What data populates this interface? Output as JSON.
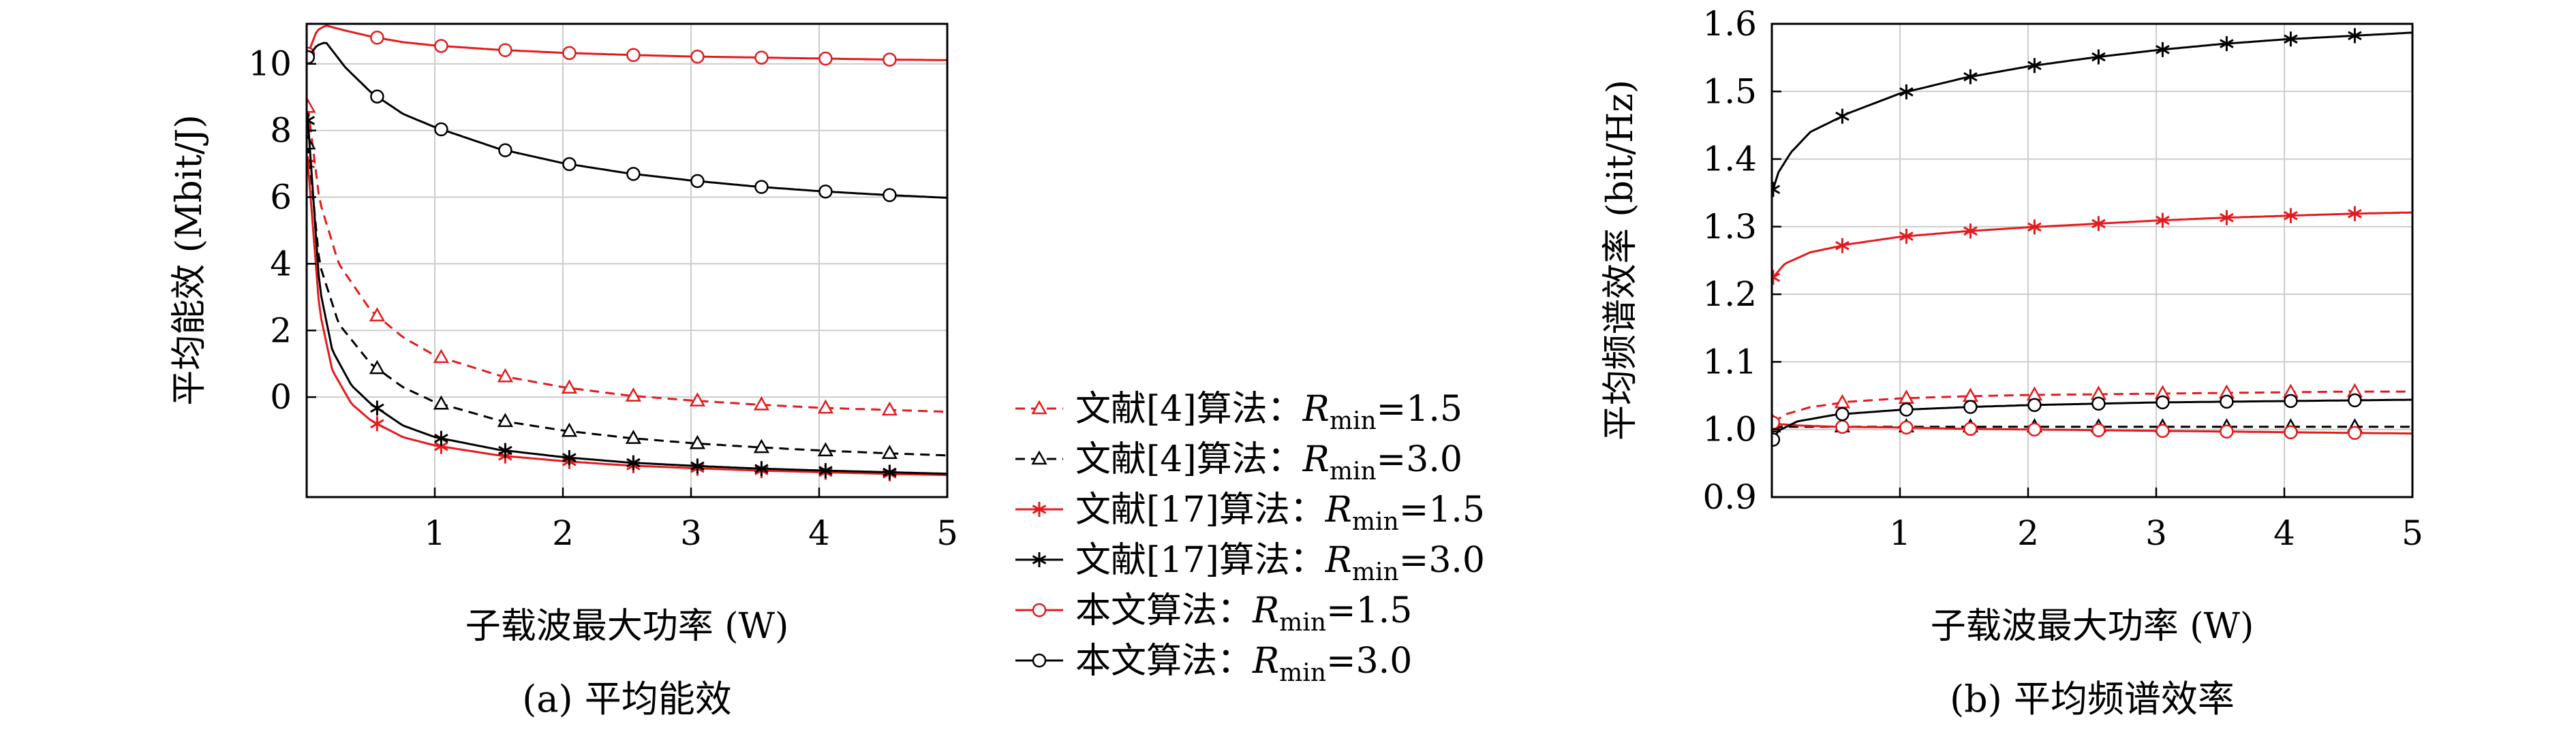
{
  "series_styles": [
    {
      "key": "ref4_15",
      "color": "#e41a1c",
      "dash": "dash",
      "marker": "triangle"
    },
    {
      "key": "ref4_30",
      "color": "#000000",
      "dash": "dash",
      "marker": "triangle"
    },
    {
      "key": "ref17_15",
      "color": "#e41a1c",
      "dash": "solid",
      "marker": "star"
    },
    {
      "key": "ref17_30",
      "color": "#000000",
      "dash": "solid",
      "marker": "star"
    },
    {
      "key": "ours_15",
      "color": "#e41a1c",
      "dash": "solid",
      "marker": "circle"
    },
    {
      "key": "ours_30",
      "color": "#000000",
      "dash": "solid",
      "marker": "circle"
    }
  ],
  "legend": {
    "entries": [
      {
        "prefix": "文献[4]算法：",
        "var": "R",
        "sub": "min",
        "suffix": "=1.5"
      },
      {
        "prefix": "文献[4]算法：",
        "var": "R",
        "sub": "min",
        "suffix": "=3.0"
      },
      {
        "prefix": "文献[17]算法：",
        "var": "R",
        "sub": "min",
        "suffix": "=1.5"
      },
      {
        "prefix": "文献[17]算法：",
        "var": "R",
        "sub": "min",
        "suffix": "=3.0"
      },
      {
        "prefix": "本文算法：",
        "var": "R",
        "sub": "min",
        "suffix": "=1.5"
      },
      {
        "prefix": "本文算法：",
        "var": "R",
        "sub": "min",
        "suffix": "=3.0"
      }
    ]
  },
  "chart_data": [
    {
      "type": "line",
      "caption": "(a) 平均能效",
      "xlabel": "子载波最大功率 (W)",
      "ylabel": "平均能效 (Mbit/J)",
      "xlim": [
        0,
        5
      ],
      "ylim": [
        -3,
        11.2
      ],
      "xticks": [
        "1",
        "2",
        "3",
        "4",
        "5"
      ],
      "yticks": [
        "0",
        "2",
        "4",
        "6",
        "8",
        "10"
      ],
      "xtick_values": [
        1,
        2,
        3,
        4,
        5
      ],
      "ytick_values": [
        0,
        2,
        4,
        6,
        8,
        10
      ],
      "grid": true,
      "series": [
        {
          "x": [
            0.01,
            0.1,
            0.25,
            0.5,
            0.75,
            1.0,
            1.5,
            2.0,
            2.5,
            3.0,
            3.5,
            4.0,
            4.5,
            5.0
          ],
          "y": [
            8.7,
            5.9,
            4.0,
            2.6,
            1.8,
            1.25,
            0.65,
            0.3,
            0.05,
            -0.1,
            -0.22,
            -0.32,
            -0.38,
            -0.44
          ],
          "markers_x": [
            0.01,
            0.55,
            1.05,
            1.55,
            2.05,
            2.55,
            3.05,
            3.55,
            4.05,
            4.55
          ]
        },
        {
          "x": [
            0.01,
            0.1,
            0.25,
            0.5,
            0.75,
            1.0,
            1.5,
            2.0,
            2.5,
            3.0,
            3.5,
            4.0,
            4.5,
            5.0
          ],
          "y": [
            7.6,
            4.0,
            2.2,
            1.0,
            0.3,
            -0.15,
            -0.7,
            -1.0,
            -1.22,
            -1.38,
            -1.5,
            -1.6,
            -1.68,
            -1.75
          ],
          "markers_x": [
            0.01,
            0.55,
            1.05,
            1.55,
            2.05,
            2.55,
            3.05,
            3.55,
            4.05,
            4.55
          ]
        },
        {
          "x": [
            0.01,
            0.1,
            0.2,
            0.35,
            0.5,
            0.75,
            1.0,
            1.5,
            2.0,
            2.5,
            3.0,
            3.5,
            4.0,
            4.5,
            5.0
          ],
          "y": [
            7.0,
            2.6,
            0.8,
            -0.2,
            -0.7,
            -1.2,
            -1.45,
            -1.75,
            -1.92,
            -2.05,
            -2.13,
            -2.2,
            -2.25,
            -2.3,
            -2.34
          ],
          "markers_x": [
            0.01,
            0.55,
            1.05,
            1.55,
            2.05,
            2.55,
            3.05,
            3.55,
            4.05,
            4.55
          ]
        },
        {
          "x": [
            0.01,
            0.1,
            0.2,
            0.35,
            0.5,
            0.75,
            1.0,
            1.5,
            2.0,
            2.5,
            3.0,
            3.5,
            4.0,
            4.5,
            5.0
          ],
          "y": [
            8.3,
            3.3,
            1.4,
            0.35,
            -0.2,
            -0.85,
            -1.2,
            -1.58,
            -1.8,
            -1.96,
            -2.06,
            -2.14,
            -2.2,
            -2.25,
            -2.3
          ],
          "markers_x": [
            0.01,
            0.55,
            1.05,
            1.55,
            2.05,
            2.55,
            3.05,
            3.55,
            4.05,
            4.55
          ]
        },
        {
          "x": [
            0.01,
            0.08,
            0.15,
            0.3,
            0.5,
            0.75,
            1.0,
            1.5,
            2.0,
            2.5,
            3.0,
            3.5,
            4.0,
            4.5,
            5.0
          ],
          "y": [
            10.3,
            11.0,
            11.15,
            11.0,
            10.82,
            10.65,
            10.55,
            10.42,
            10.33,
            10.27,
            10.22,
            10.19,
            10.16,
            10.13,
            10.11
          ],
          "markers_x": [
            0.01,
            0.55,
            1.05,
            1.55,
            2.05,
            2.55,
            3.05,
            3.55,
            4.05,
            4.55
          ]
        },
        {
          "x": [
            0.01,
            0.08,
            0.15,
            0.3,
            0.5,
            0.75,
            1.0,
            1.5,
            2.0,
            2.5,
            3.0,
            3.5,
            4.0,
            4.5,
            5.0
          ],
          "y": [
            10.2,
            10.55,
            10.65,
            9.9,
            9.15,
            8.5,
            8.1,
            7.45,
            7.02,
            6.72,
            6.5,
            6.32,
            6.18,
            6.07,
            5.98
          ],
          "markers_x": [
            0.01,
            0.55,
            1.05,
            1.55,
            2.05,
            2.55,
            3.05,
            3.55,
            4.05,
            4.55
          ]
        }
      ]
    },
    {
      "type": "line",
      "caption": "(b) 平均频谱效率",
      "xlabel": "子载波最大功率 (W)",
      "ylabel": "平均频谱效率 (bit/Hz)",
      "xlim": [
        0,
        5
      ],
      "ylim": [
        0.9,
        1.6
      ],
      "xticks": [
        "1",
        "2",
        "3",
        "4",
        "5"
      ],
      "yticks": [
        "0.9",
        "1.0",
        "1.1",
        "1.2",
        "1.3",
        "1.4",
        "1.5",
        "1.6"
      ],
      "xtick_values": [
        1,
        2,
        3,
        4,
        5
      ],
      "ytick_values": [
        0.9,
        1.0,
        1.1,
        1.2,
        1.3,
        1.4,
        1.5,
        1.6
      ],
      "grid": true,
      "series": [
        {
          "x": [
            0.01,
            0.1,
            0.3,
            0.6,
            1.0,
            1.5,
            2.0,
            2.5,
            3.0,
            3.5,
            4.0,
            4.5,
            5.0
          ],
          "y": [
            1.01,
            1.022,
            1.033,
            1.041,
            1.046,
            1.049,
            1.051,
            1.052,
            1.053,
            1.054,
            1.055,
            1.056,
            1.056
          ],
          "markers_x": [
            0.01,
            0.55,
            1.05,
            1.55,
            2.05,
            2.55,
            3.05,
            3.55,
            4.05,
            4.55
          ]
        },
        {
          "x": [
            0.01,
            0.5,
            1.0,
            2.0,
            3.0,
            4.0,
            5.0
          ],
          "y": [
            1.004,
            1.004,
            1.004,
            1.004,
            1.004,
            1.004,
            1.004
          ],
          "markers_x": [
            0.01,
            0.55,
            1.05,
            1.55,
            2.05,
            2.55,
            3.05,
            3.55,
            4.05,
            4.55
          ]
        },
        {
          "x": [
            0.01,
            0.1,
            0.3,
            0.6,
            1.0,
            1.5,
            2.0,
            2.5,
            3.0,
            3.5,
            4.0,
            4.5,
            5.0
          ],
          "y": [
            1.225,
            1.245,
            1.262,
            1.274,
            1.285,
            1.293,
            1.299,
            1.304,
            1.309,
            1.313,
            1.316,
            1.319,
            1.321
          ],
          "markers_x": [
            0.01,
            0.55,
            1.05,
            1.55,
            2.05,
            2.55,
            3.05,
            3.55,
            4.05,
            4.55
          ]
        },
        {
          "x": [
            0.01,
            0.05,
            0.15,
            0.3,
            0.6,
            1.0,
            1.5,
            2.0,
            2.5,
            3.0,
            3.5,
            4.0,
            4.5,
            5.0
          ],
          "y": [
            1.355,
            1.38,
            1.41,
            1.44,
            1.468,
            1.497,
            1.52,
            1.537,
            1.55,
            1.561,
            1.57,
            1.577,
            1.582,
            1.587
          ],
          "markers_x": [
            0.01,
            0.55,
            1.05,
            1.55,
            2.05,
            2.55,
            3.05,
            3.55,
            4.05,
            4.55
          ]
        },
        {
          "x": [
            0.01,
            0.05,
            0.2,
            0.5,
            1.0,
            1.5,
            2.0,
            2.5,
            3.0,
            3.5,
            4.0,
            4.5,
            5.0
          ],
          "y": [
            1.01,
            1.008,
            1.006,
            1.004,
            1.003,
            1.001,
            1.0,
            0.999,
            0.998,
            0.997,
            0.996,
            0.995,
            0.994
          ],
          "markers_x": [
            0.01,
            0.55,
            1.05,
            1.55,
            2.05,
            2.55,
            3.05,
            3.55,
            4.05,
            4.55
          ]
        },
        {
          "x": [
            0.01,
            0.05,
            0.2,
            0.5,
            1.0,
            1.5,
            2.0,
            2.5,
            3.0,
            3.5,
            4.0,
            4.5,
            5.0
          ],
          "y": [
            0.985,
            0.998,
            1.012,
            1.022,
            1.029,
            1.033,
            1.036,
            1.038,
            1.04,
            1.041,
            1.042,
            1.043,
            1.044
          ],
          "markers_x": [
            0.01,
            0.55,
            1.05,
            1.55,
            2.05,
            2.55,
            3.05,
            3.55,
            4.05,
            4.55
          ]
        }
      ]
    }
  ]
}
